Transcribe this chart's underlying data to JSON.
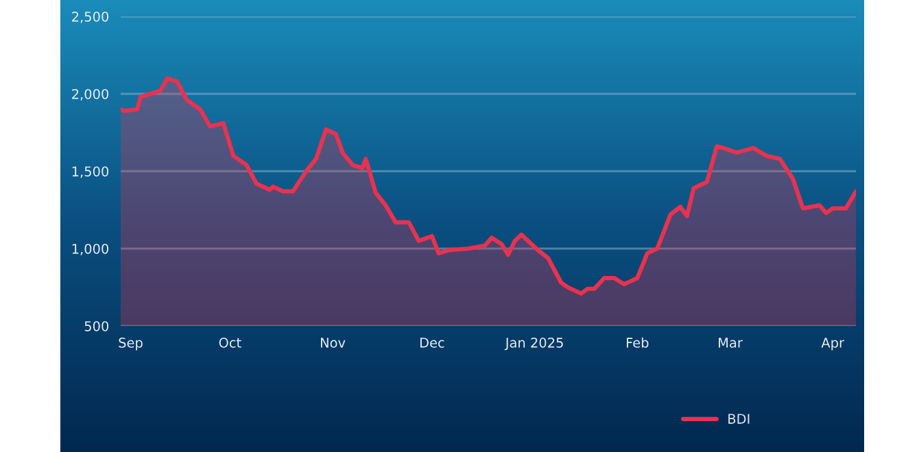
{
  "chart_data": {
    "type": "area",
    "x": [
      "2024-08-29",
      "2024-08-30",
      "2024-09-03",
      "2024-09-04",
      "2024-09-10",
      "2024-09-12",
      "2024-09-15",
      "2024-09-18",
      "2024-09-22",
      "2024-09-25",
      "2024-09-29",
      "2024-10-02",
      "2024-10-06",
      "2024-10-09",
      "2024-10-13",
      "2024-10-14",
      "2024-10-17",
      "2024-10-20",
      "2024-10-24",
      "2024-10-27",
      "2024-10-30",
      "2024-11-02",
      "2024-11-04",
      "2024-11-07",
      "2024-11-10",
      "2024-11-11",
      "2024-11-14",
      "2024-11-17",
      "2024-11-20",
      "2024-11-24",
      "2024-11-27",
      "2024-12-01",
      "2024-12-03",
      "2024-12-06",
      "2024-12-12",
      "2024-12-17",
      "2024-12-19",
      "2024-12-22",
      "2024-12-24",
      "2024-12-26",
      "2024-12-28",
      "2025-01-02",
      "2025-01-05",
      "2025-01-09",
      "2025-01-11",
      "2025-01-15",
      "2025-01-17",
      "2025-01-19",
      "2025-01-22",
      "2025-01-25",
      "2025-01-28",
      "2025-02-01",
      "2025-02-04",
      "2025-02-07",
      "2025-02-11",
      "2025-02-14",
      "2025-02-16",
      "2025-02-18",
      "2025-02-22",
      "2025-02-25",
      "2025-02-27",
      "2025-03-03",
      "2025-03-08",
      "2025-03-12",
      "2025-03-16",
      "2025-03-20",
      "2025-03-23",
      "2025-03-28",
      "2025-03-30",
      "2025-04-01",
      "2025-04-05",
      "2025-04-08"
    ],
    "series": [
      {
        "name": "BDI",
        "color": "#e8324f",
        "values": [
          1900,
          1890,
          1900,
          1980,
          2020,
          2100,
          2080,
          1960,
          1900,
          1790,
          1810,
          1600,
          1540,
          1420,
          1380,
          1400,
          1370,
          1370,
          1500,
          1580,
          1770,
          1740,
          1620,
          1540,
          1520,
          1580,
          1360,
          1280,
          1170,
          1170,
          1050,
          1080,
          970,
          990,
          1000,
          1020,
          1070,
          1030,
          960,
          1050,
          1090,
          990,
          940,
          780,
          750,
          710,
          740,
          740,
          810,
          810,
          770,
          810,
          970,
          1000,
          1220,
          1270,
          1210,
          1390,
          1430,
          1660,
          1650,
          1620,
          1650,
          1600,
          1580,
          1450,
          1260,
          1280,
          1230,
          1260,
          1260,
          1370
        ]
      }
    ],
    "xlim": [
      "2024-08-29",
      "2025-04-08"
    ],
    "xticks": [
      {
        "value": "2024-09-01",
        "label": "Sep"
      },
      {
        "value": "2024-10-01",
        "label": "Oct"
      },
      {
        "value": "2024-11-01",
        "label": "Nov"
      },
      {
        "value": "2024-12-01",
        "label": "Dec"
      },
      {
        "value": "2025-01-01",
        "label": "Jan 2025"
      },
      {
        "value": "2025-02-01",
        "label": "Feb"
      },
      {
        "value": "2025-03-01",
        "label": "Mar"
      },
      {
        "value": "2025-04-01",
        "label": "Apr"
      }
    ],
    "ylim": [
      500,
      2500
    ],
    "yticks": [
      {
        "value": 500,
        "label": "500"
      },
      {
        "value": 1000,
        "label": "1,000"
      },
      {
        "value": 1500,
        "label": "1,500"
      },
      {
        "value": 2000,
        "label": "2,000"
      },
      {
        "value": 2500,
        "label": "2,500"
      }
    ],
    "grid": "y",
    "legend": "bottom"
  }
}
